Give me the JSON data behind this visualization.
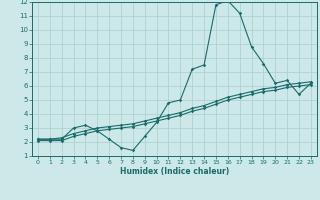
{
  "xlabel": "Humidex (Indice chaleur)",
  "background_color": "#cce8e8",
  "grid_color": "#aacece",
  "line_color": "#1a6b6b",
  "xlim": [
    -0.5,
    23.5
  ],
  "ylim": [
    1,
    12
  ],
  "x_ticks": [
    0,
    1,
    2,
    3,
    4,
    5,
    6,
    7,
    8,
    9,
    10,
    11,
    12,
    13,
    14,
    15,
    16,
    17,
    18,
    19,
    20,
    21,
    22,
    23
  ],
  "y_ticks": [
    1,
    2,
    3,
    4,
    5,
    6,
    7,
    8,
    9,
    10,
    11,
    12
  ],
  "line1_x": [
    0,
    1,
    2,
    3,
    4,
    5,
    6,
    7,
    8,
    9,
    10,
    11,
    12,
    13,
    14,
    15,
    16,
    17,
    18,
    19,
    20,
    21,
    22,
    23
  ],
  "line1_y": [
    2.2,
    2.2,
    2.2,
    3.0,
    3.2,
    2.8,
    2.2,
    1.6,
    1.4,
    2.4,
    3.4,
    4.8,
    5.0,
    7.2,
    7.5,
    11.8,
    12.1,
    11.2,
    8.8,
    7.6,
    6.2,
    6.4,
    5.4,
    6.2
  ],
  "line2_x": [
    0,
    1,
    2,
    3,
    4,
    5,
    6,
    7,
    8,
    9,
    10,
    11,
    12,
    13,
    14,
    15,
    16,
    17,
    18,
    19,
    20,
    21,
    22,
    23
  ],
  "line2_y": [
    2.2,
    2.2,
    2.3,
    2.6,
    2.8,
    3.0,
    3.1,
    3.2,
    3.3,
    3.5,
    3.7,
    3.9,
    4.1,
    4.4,
    4.6,
    4.9,
    5.2,
    5.4,
    5.6,
    5.8,
    5.9,
    6.1,
    6.2,
    6.3
  ],
  "line3_x": [
    0,
    1,
    2,
    3,
    4,
    5,
    6,
    7,
    8,
    9,
    10,
    11,
    12,
    13,
    14,
    15,
    16,
    17,
    18,
    19,
    20,
    21,
    22,
    23
  ],
  "line3_y": [
    2.1,
    2.1,
    2.1,
    2.4,
    2.6,
    2.8,
    2.9,
    3.0,
    3.1,
    3.3,
    3.5,
    3.7,
    3.9,
    4.2,
    4.4,
    4.7,
    5.0,
    5.2,
    5.4,
    5.6,
    5.7,
    5.9,
    6.0,
    6.1
  ]
}
